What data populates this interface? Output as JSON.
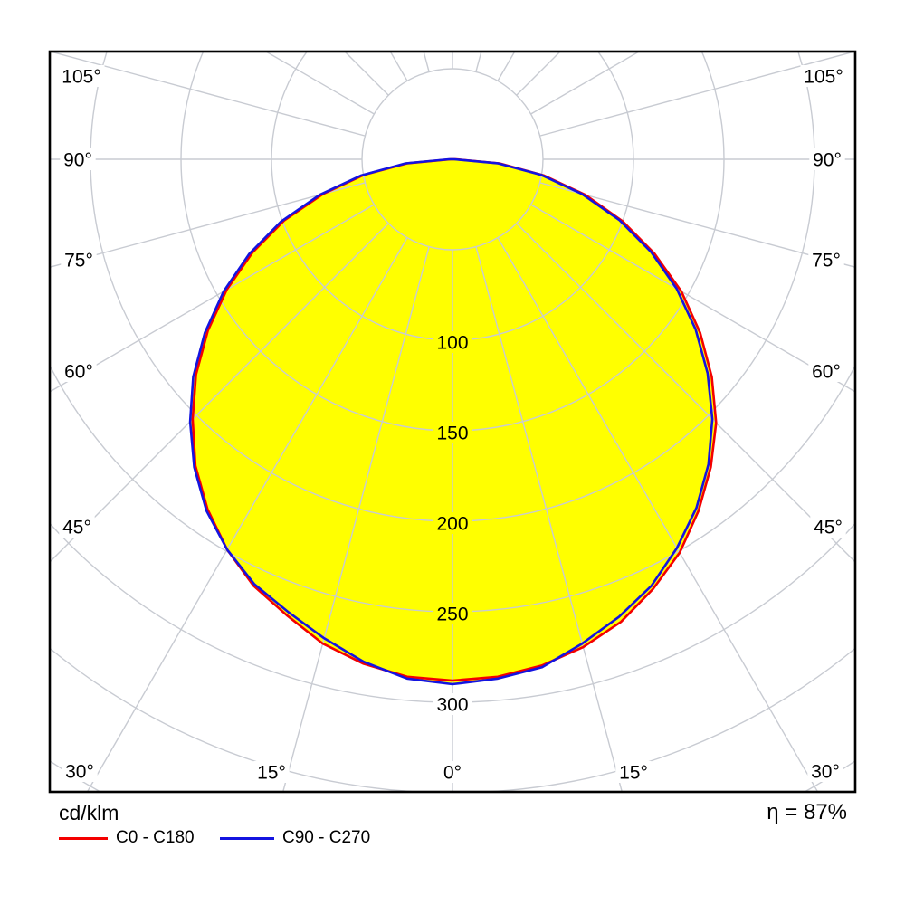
{
  "chart_data": {
    "type": "line",
    "subtype": "photometric-polar-luminous-intensity",
    "units_label": "cd/klm",
    "efficiency_label": "η = 87%",
    "radial_unit": "cd/klm",
    "radial_rings_cd_per_klm": [
      50,
      100,
      150,
      200,
      250,
      300,
      350,
      400
    ],
    "radial_tick_labels": [
      "100",
      "150",
      "200",
      "250",
      "300"
    ],
    "radial_tick_values": [
      100,
      150,
      200,
      250,
      300
    ],
    "spoke_step_deg": 15,
    "angle_labels": {
      "left": [
        "105°",
        "90°",
        "75°",
        "60°",
        "45°",
        "30°"
      ],
      "right": [
        "105°",
        "90°",
        "75°",
        "60°",
        "45°",
        "30°"
      ],
      "bottom": [
        "15°",
        "0°",
        "15°"
      ]
    },
    "legend": [
      {
        "label": "C0 - C180",
        "color": "#f40000"
      },
      {
        "label": "C90 - C270",
        "color": "#1414e0"
      }
    ],
    "fill_color": "#ffff00",
    "grid_color": "#c8cbd2",
    "border_color": "#000000",
    "max_intensity_cd_per_klm": 290,
    "series": [
      {
        "name": "C0 - C180",
        "color": "#f40000",
        "gamma_deg": [
          -90,
          -85,
          -80,
          -75,
          -70,
          -65,
          -60,
          -55,
          -50,
          -45,
          -40,
          -35,
          -30,
          -25,
          -20,
          -15,
          -10,
          -5,
          0,
          5,
          10,
          15,
          20,
          25,
          30,
          35,
          40,
          45,
          50,
          55,
          60,
          65,
          70,
          75,
          80,
          85,
          90
        ],
        "values_cd_per_klm": [
          1,
          25,
          50,
          74,
          99,
          122,
          144,
          165,
          185,
          203,
          221,
          236,
          249,
          260,
          268,
          277,
          283,
          287,
          288,
          287,
          284,
          279,
          272,
          262,
          251,
          237,
          222,
          206,
          187,
          167,
          146,
          123,
          100,
          76,
          51,
          26,
          2
        ]
      },
      {
        "name": "C90 - C270",
        "color": "#1414e0",
        "gamma_deg": [
          -90,
          -85,
          -80,
          -75,
          -70,
          -65,
          -60,
          -55,
          -50,
          -45,
          -40,
          -35,
          -30,
          -25,
          -20,
          -15,
          -10,
          -5,
          0,
          5,
          10,
          15,
          20,
          25,
          30,
          35,
          40,
          45,
          50,
          55,
          60,
          65,
          70,
          75,
          80,
          85,
          90
        ],
        "values_cd_per_klm": [
          2,
          26,
          51,
          76,
          101,
          124,
          146,
          167,
          187,
          205,
          222,
          237,
          249,
          259,
          266,
          274,
          282,
          288,
          290,
          288,
          285,
          277,
          269,
          260,
          248,
          235,
          220,
          203,
          184,
          164,
          143,
          121,
          98,
          74,
          50,
          25,
          1
        ]
      }
    ]
  }
}
